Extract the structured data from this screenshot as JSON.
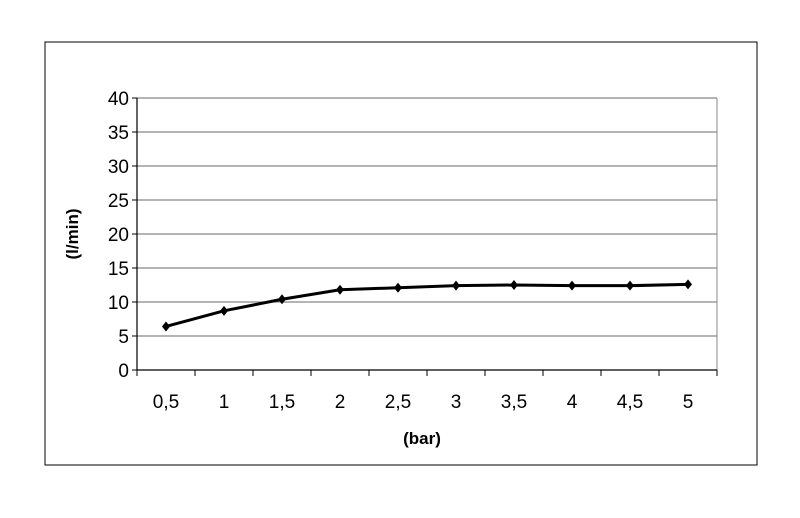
{
  "chart_data": {
    "type": "line",
    "title": "",
    "xlabel": "(bar)",
    "ylabel": "(l/min)",
    "categories": [
      "0,5",
      "1",
      "1,5",
      "2",
      "2,5",
      "3",
      "3,5",
      "4",
      "4,5",
      "5"
    ],
    "series": [
      {
        "values": [
          6.4,
          8.7,
          10.4,
          11.8,
          12.1,
          12.4,
          12.5,
          12.4,
          12.4,
          12.6
        ],
        "color": "#000000",
        "marker": "diamond"
      }
    ],
    "ylim": [
      0,
      40
    ],
    "yticks": [
      0,
      5,
      10,
      15,
      20,
      25,
      30,
      35,
      40
    ],
    "grid": true,
    "legend": "none"
  }
}
